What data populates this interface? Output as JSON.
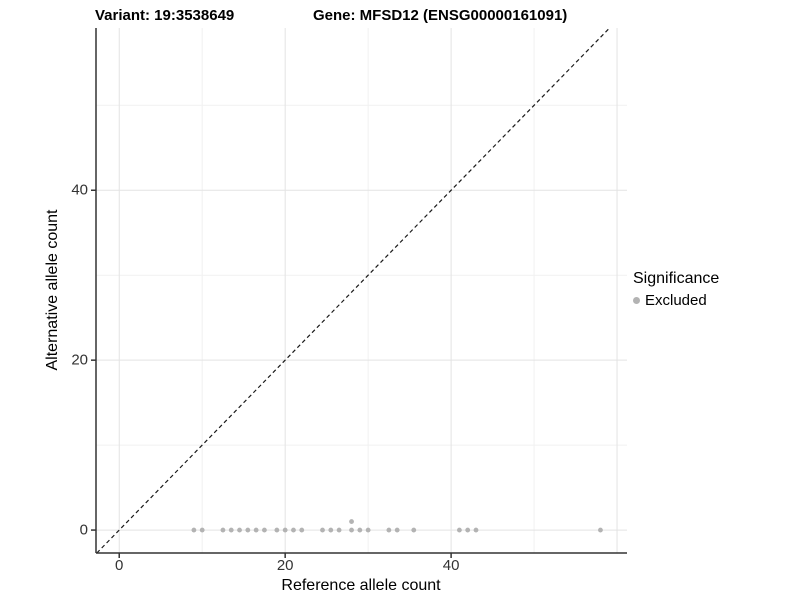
{
  "titles": {
    "variant": "Variant: 19:3538649",
    "gene": "Gene: MFSD12 (ENSG00000161091)"
  },
  "legend": {
    "title": "Significance",
    "items": [
      {
        "label": "Excluded",
        "color": "#b3b3b3"
      }
    ]
  },
  "chart_data": {
    "type": "scatter",
    "title_left": "Variant: 19:3538649",
    "title_right": "Gene: MFSD12 (ENSG00000161091)",
    "xlabel": "Reference allele count",
    "ylabel": "Alternative allele count",
    "xlim": [
      -2.8,
      61.2
    ],
    "ylim": [
      -2.7,
      59.1
    ],
    "x_ticks": [
      0,
      20,
      40
    ],
    "y_ticks": [
      0,
      20,
      40
    ],
    "grid_interval_major": 20,
    "grid_interval_minor": 10,
    "grid": true,
    "identity_line": {
      "type": "dashed",
      "slope": 1,
      "intercept": 0,
      "color": "#1a1a1a"
    },
    "legend_position": "right",
    "series": [
      {
        "name": "Excluded",
        "color": "#b3b3b3",
        "points": [
          [
            9,
            0
          ],
          [
            10,
            0
          ],
          [
            12.5,
            0
          ],
          [
            13.5,
            0
          ],
          [
            14.5,
            0
          ],
          [
            15.5,
            0
          ],
          [
            16.5,
            0
          ],
          [
            17.5,
            0
          ],
          [
            19,
            0
          ],
          [
            20,
            0
          ],
          [
            21,
            0
          ],
          [
            22,
            0
          ],
          [
            24.5,
            0
          ],
          [
            25.5,
            0
          ],
          [
            26.5,
            0
          ],
          [
            28,
            0
          ],
          [
            28,
            1
          ],
          [
            29,
            0
          ],
          [
            30,
            0
          ],
          [
            32.5,
            0
          ],
          [
            33.5,
            0
          ],
          [
            35.5,
            0
          ],
          [
            41,
            0
          ],
          [
            42,
            0
          ],
          [
            43,
            0
          ],
          [
            58,
            0
          ]
        ]
      }
    ],
    "colors": {
      "point": "#b3b3b3",
      "grid_major": "#e3e3e3",
      "grid_minor": "#f1f1f1",
      "axis_line": "#333333",
      "tick_text": "#333333",
      "identity_line": "#1a1a1a"
    }
  }
}
